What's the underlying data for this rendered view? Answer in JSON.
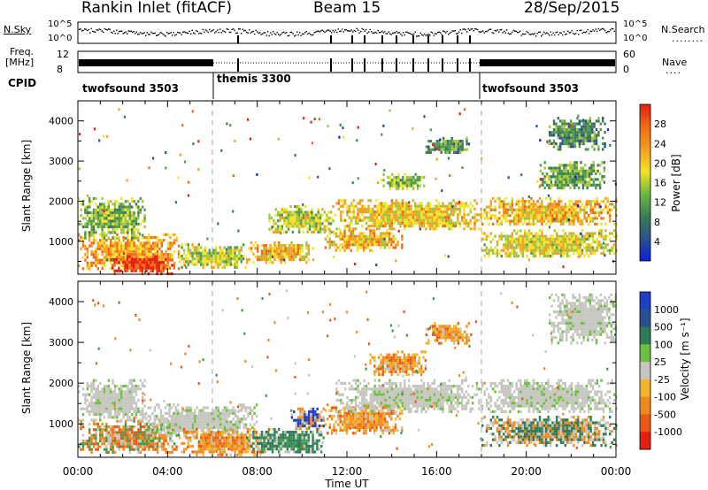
{
  "header": {
    "station": "Rankin Inlet (fitACF)",
    "beam": "Beam 15",
    "date": "28/Sep/2015"
  },
  "status_panels": {
    "nsky_label": "N.Sky",
    "nsearch_label": "N.Search",
    "noise_ticks_left": [
      "10^5",
      "10^0"
    ],
    "noise_ticks_right": [
      "10^5",
      "10^0"
    ],
    "freq_label": "Freq.",
    "freq_unit": "[MHz]",
    "freq_ticks": [
      "12",
      "8"
    ],
    "nave_label": "Nave",
    "nave_ticks": [
      "60",
      "0"
    ],
    "cpid_label": "CPID",
    "cpid_segments": [
      {
        "name": "twofsound 3503",
        "start": 0,
        "end": 6
      },
      {
        "name": "themis 3300",
        "start": 6,
        "end": 18
      },
      {
        "name": "twofsound 3503",
        "start": 18,
        "end": 24
      }
    ]
  },
  "chart_data": [
    {
      "type": "heatmap",
      "panel": "power",
      "ylabel": "Slant Range [km]",
      "x_range_hours": [
        0,
        24
      ],
      "ylim": [
        180,
        4500
      ],
      "y_ticks": [
        1000,
        2000,
        3000,
        4000
      ],
      "colorbar": {
        "label": "Power [dB]",
        "ticks": [
          "4",
          "8",
          "12",
          "16",
          "20",
          "24",
          "28"
        ]
      },
      "blobs": [
        {
          "t0": 0.0,
          "t1": 4.5,
          "r0": 300,
          "r1": 1200,
          "level": 0.75
        },
        {
          "t0": 1.5,
          "t1": 4.3,
          "r0": 220,
          "r1": 650,
          "level": 1.0
        },
        {
          "t0": 0.0,
          "t1": 3.0,
          "r0": 1100,
          "r1": 2100,
          "level": 0.45
        },
        {
          "t0": 4.5,
          "t1": 7.5,
          "r0": 350,
          "r1": 950,
          "level": 0.55
        },
        {
          "t0": 7.5,
          "t1": 10.5,
          "r0": 500,
          "r1": 1000,
          "level": 0.7
        },
        {
          "t0": 8.5,
          "t1": 11.5,
          "r0": 1200,
          "r1": 1900,
          "level": 0.55
        },
        {
          "t0": 11.0,
          "t1": 14.5,
          "r0": 800,
          "r1": 1300,
          "level": 0.7
        },
        {
          "t0": 11.5,
          "t1": 18.0,
          "r0": 1300,
          "r1": 2050,
          "level": 0.65
        },
        {
          "t0": 13.5,
          "t1": 15.5,
          "r0": 2300,
          "r1": 2700,
          "level": 0.45
        },
        {
          "t0": 15.5,
          "t1": 17.5,
          "r0": 3200,
          "r1": 3600,
          "level": 0.35
        },
        {
          "t0": 18.0,
          "t1": 24.0,
          "r0": 600,
          "r1": 1300,
          "level": 0.6
        },
        {
          "t0": 18.0,
          "t1": 24.0,
          "r0": 1400,
          "r1": 2100,
          "level": 0.7
        },
        {
          "t0": 20.5,
          "t1": 23.5,
          "r0": 2300,
          "r1": 3000,
          "level": 0.4
        },
        {
          "t0": 21.0,
          "t1": 23.5,
          "r0": 3300,
          "r1": 4100,
          "level": 0.3
        }
      ]
    },
    {
      "type": "heatmap",
      "panel": "velocity",
      "xlabel": "Time UT",
      "ylabel": "Slant Range [km]",
      "x_range_hours": [
        0,
        24
      ],
      "ylim": [
        180,
        4500
      ],
      "x_ticks": [
        "00:00",
        "04:00",
        "08:00",
        "12:00",
        "16:00",
        "20:00",
        "00:00"
      ],
      "y_ticks": [
        1000,
        2000,
        3000,
        4000
      ],
      "colorbar": {
        "label": "Velocity [m s⁻¹]",
        "ticks": [
          "1000",
          "500",
          "100",
          "25",
          "-25",
          "-100",
          "-500",
          "-1000"
        ]
      },
      "blobs": [
        {
          "t0": 0.0,
          "t1": 4.5,
          "r0": 300,
          "r1": 1100,
          "cls": "mix"
        },
        {
          "t0": 0.0,
          "t1": 3.0,
          "r0": 1100,
          "r1": 2100,
          "cls": "grey"
        },
        {
          "t0": 3.0,
          "t1": 8.0,
          "r0": 700,
          "r1": 1500,
          "cls": "grey"
        },
        {
          "t0": 4.5,
          "t1": 8.5,
          "r0": 250,
          "r1": 900,
          "cls": "orange"
        },
        {
          "t0": 7.5,
          "t1": 11.0,
          "r0": 300,
          "r1": 900,
          "cls": "green"
        },
        {
          "t0": 9.5,
          "t1": 11.0,
          "r0": 900,
          "r1": 1400,
          "cls": "blue"
        },
        {
          "t0": 11.0,
          "t1": 14.5,
          "r0": 800,
          "r1": 1500,
          "cls": "orange"
        },
        {
          "t0": 11.5,
          "t1": 18.0,
          "r0": 1300,
          "r1": 2100,
          "cls": "grey"
        },
        {
          "t0": 13.0,
          "t1": 15.5,
          "r0": 2200,
          "r1": 2800,
          "cls": "orange"
        },
        {
          "t0": 15.5,
          "t1": 17.5,
          "r0": 3000,
          "r1": 3500,
          "cls": "orange"
        },
        {
          "t0": 18.0,
          "t1": 24.0,
          "r0": 500,
          "r1": 1200,
          "cls": "mixgreen"
        },
        {
          "t0": 18.0,
          "t1": 24.0,
          "r0": 1300,
          "r1": 2100,
          "cls": "grey"
        },
        {
          "t0": 21.0,
          "t1": 24.0,
          "r0": 3000,
          "r1": 4200,
          "cls": "grey"
        }
      ]
    }
  ],
  "colors": {
    "power_scale": [
      "#0b1fd8",
      "#2b4f8f",
      "#3a7a55",
      "#4f9a4c",
      "#a2c43c",
      "#f2e325",
      "#f5a020",
      "#f06a15",
      "#e51e10"
    ],
    "velocity": {
      "blue": "#1f3fc4",
      "green": [
        "#2f7a57",
        "#3e9a4d",
        "#6cbf3f"
      ],
      "grey": "#c6c6bf",
      "orange": [
        "#f2b52a",
        "#f18a1e",
        "#ea5a15"
      ],
      "red": "#e51e10"
    }
  }
}
